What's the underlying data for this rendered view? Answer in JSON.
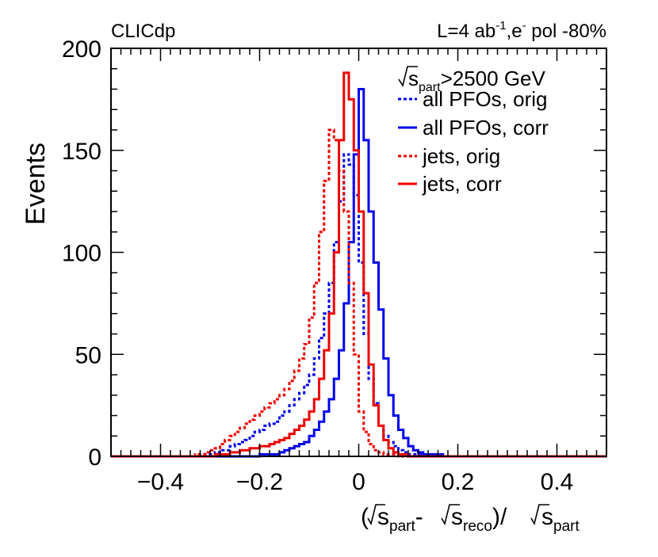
{
  "chart_data": {
    "type": "line",
    "style": "step-histogram",
    "experiment_label": "CLICdp",
    "lumi_label": {
      "main": "L=4 ab",
      "sup": "-1",
      "mid": ",e",
      "sup2": "-",
      "tail": " pol -80%"
    },
    "ylabel": "Events",
    "xlabel": {
      "open": "(",
      "s1": "s",
      "sub1": "part",
      "dash": "-",
      "s2": "s",
      "sub2": "reco",
      "slash": ")/",
      "s3": "s",
      "sub3": "part"
    },
    "legend_title": {
      "s": "s",
      "sub": "part",
      "rest": ">2500 GeV"
    },
    "xlim": [
      -0.5,
      0.5
    ],
    "ylim": [
      0,
      200
    ],
    "x_ticks": [
      -0.4,
      -0.2,
      0,
      0.2,
      0.4
    ],
    "x_tick_labels": [
      "−0.4",
      "−0.2",
      "0",
      "0.2",
      "0.4"
    ],
    "y_ticks": [
      0,
      50,
      100,
      150,
      200
    ],
    "y_tick_labels": [
      "0",
      "50",
      "100",
      "150",
      "200"
    ],
    "bin_width": 0.01,
    "colors": {
      "blue": "#0000ee",
      "red": "#ee0000"
    },
    "series": [
      {
        "name": "all PFOs, orig",
        "color": "#0000ee",
        "dashed": true,
        "bin_lows": [
          -0.5,
          -0.49,
          -0.48,
          -0.47,
          -0.46,
          -0.45,
          -0.44,
          -0.43,
          -0.42,
          -0.41,
          -0.4,
          -0.39,
          -0.38,
          -0.37,
          -0.36,
          -0.35,
          -0.34,
          -0.33,
          -0.32,
          -0.31,
          -0.3,
          -0.29,
          -0.28,
          -0.27,
          -0.26,
          -0.25,
          -0.24,
          -0.23,
          -0.22,
          -0.21,
          -0.2,
          -0.19,
          -0.18,
          -0.17,
          -0.16,
          -0.15,
          -0.14,
          -0.13,
          -0.12,
          -0.11,
          -0.1,
          -0.09,
          -0.08,
          -0.07,
          -0.06,
          -0.05,
          -0.04,
          -0.03,
          -0.02,
          -0.01,
          0,
          0.01,
          0.02,
          0.03,
          0.04,
          0.05,
          0.06,
          0.07,
          0.08,
          0.09,
          0.1,
          0.11,
          0.12,
          0.13,
          0.14,
          0.15,
          0.16,
          0.17,
          0.18,
          0.19,
          0.2,
          0.21,
          0.22,
          0.23,
          0.24,
          0.25,
          0.26,
          0.27,
          0.28,
          0.29,
          0.3,
          0.31,
          0.32,
          0.33,
          0.34,
          0.35,
          0.36,
          0.37,
          0.38,
          0.39,
          0.4,
          0.41,
          0.42,
          0.43,
          0.44,
          0.45,
          0.46,
          0.47,
          0.48,
          0.49
        ],
        "values": [
          0,
          0,
          0,
          0,
          0,
          0,
          0,
          0,
          0,
          0,
          0,
          0,
          0,
          0,
          0,
          0,
          0,
          0,
          1,
          1,
          1,
          2,
          3,
          3,
          5,
          6,
          7,
          8,
          10,
          12,
          13,
          15,
          16,
          17,
          20,
          22,
          25,
          28,
          31,
          35,
          40,
          48,
          58,
          70,
          85,
          105,
          125,
          148,
          143,
          128,
          95,
          60,
          38,
          26,
          15,
          10,
          7,
          5,
          3,
          2,
          1,
          1,
          1,
          0,
          0,
          0,
          0,
          0,
          0,
          0,
          0,
          0,
          0,
          0,
          0,
          0,
          0,
          0,
          0,
          0,
          0,
          0,
          0,
          0,
          0,
          0,
          0,
          0,
          0,
          0,
          0,
          0,
          0,
          0,
          0,
          0,
          0,
          0,
          0,
          0
        ]
      },
      {
        "name": "all PFOs, corr",
        "color": "#0000ee",
        "dashed": false,
        "bin_lows": [
          -0.5,
          -0.49,
          -0.48,
          -0.47,
          -0.46,
          -0.45,
          -0.44,
          -0.43,
          -0.42,
          -0.41,
          -0.4,
          -0.39,
          -0.38,
          -0.37,
          -0.36,
          -0.35,
          -0.34,
          -0.33,
          -0.32,
          -0.31,
          -0.3,
          -0.29,
          -0.28,
          -0.27,
          -0.26,
          -0.25,
          -0.24,
          -0.23,
          -0.22,
          -0.21,
          -0.2,
          -0.19,
          -0.18,
          -0.17,
          -0.16,
          -0.15,
          -0.14,
          -0.13,
          -0.12,
          -0.11,
          -0.1,
          -0.09,
          -0.08,
          -0.07,
          -0.06,
          -0.05,
          -0.04,
          -0.03,
          -0.02,
          -0.01,
          0,
          0.01,
          0.02,
          0.03,
          0.04,
          0.05,
          0.06,
          0.07,
          0.08,
          0.09,
          0.1,
          0.11,
          0.12,
          0.13,
          0.14,
          0.15,
          0.16,
          0.17,
          0.18,
          0.19,
          0.2,
          0.21,
          0.22,
          0.23,
          0.24,
          0.25,
          0.26,
          0.27,
          0.28,
          0.29,
          0.3,
          0.31,
          0.32,
          0.33,
          0.34,
          0.35,
          0.36,
          0.37,
          0.38,
          0.39,
          0.4,
          0.41,
          0.42,
          0.43,
          0.44,
          0.45,
          0.46,
          0.47,
          0.48,
          0.49
        ],
        "values": [
          0,
          0,
          0,
          0,
          0,
          0,
          0,
          0,
          0,
          0,
          0,
          0,
          0,
          0,
          0,
          0,
          0,
          0,
          0,
          0,
          0,
          0,
          0,
          0,
          0,
          0,
          0,
          0,
          0,
          0,
          1,
          1,
          1,
          1,
          2,
          3,
          4,
          5,
          6,
          7,
          10,
          13,
          17,
          22,
          28,
          38,
          52,
          75,
          105,
          148,
          180,
          155,
          120,
          95,
          72,
          48,
          30,
          20,
          13,
          9,
          5,
          3,
          2,
          1,
          1,
          1,
          1,
          0,
          0,
          0,
          0,
          0,
          0,
          0,
          0,
          0,
          0,
          0,
          0,
          0,
          0,
          0,
          0,
          0,
          0,
          0,
          0,
          0,
          0,
          0,
          0,
          0,
          0,
          0,
          0,
          0,
          0,
          0,
          0,
          0
        ]
      },
      {
        "name": "jets, orig",
        "color": "#ee0000",
        "dashed": true,
        "bin_lows": [
          -0.5,
          -0.49,
          -0.48,
          -0.47,
          -0.46,
          -0.45,
          -0.44,
          -0.43,
          -0.42,
          -0.41,
          -0.4,
          -0.39,
          -0.38,
          -0.37,
          -0.36,
          -0.35,
          -0.34,
          -0.33,
          -0.32,
          -0.31,
          -0.3,
          -0.29,
          -0.28,
          -0.27,
          -0.26,
          -0.25,
          -0.24,
          -0.23,
          -0.22,
          -0.21,
          -0.2,
          -0.19,
          -0.18,
          -0.17,
          -0.16,
          -0.15,
          -0.14,
          -0.13,
          -0.12,
          -0.11,
          -0.1,
          -0.09,
          -0.08,
          -0.07,
          -0.06,
          -0.05,
          -0.04,
          -0.03,
          -0.02,
          -0.01,
          0,
          0.01,
          0.02,
          0.03,
          0.04,
          0.05,
          0.06,
          0.07,
          0.08,
          0.09,
          0.1,
          0.11,
          0.12,
          0.13,
          0.14,
          0.15,
          0.16,
          0.17,
          0.18,
          0.19,
          0.2,
          0.21,
          0.22,
          0.23,
          0.24,
          0.25,
          0.26,
          0.27,
          0.28,
          0.29,
          0.3,
          0.31,
          0.32,
          0.33,
          0.34,
          0.35,
          0.36,
          0.37,
          0.38,
          0.39,
          0.4,
          0.41,
          0.42,
          0.43,
          0.44,
          0.45,
          0.46,
          0.47,
          0.48,
          0.49
        ],
        "values": [
          0,
          0,
          0,
          0,
          0,
          0,
          0,
          0,
          0,
          0,
          0,
          0,
          0,
          0,
          0,
          0,
          0,
          1,
          1,
          2,
          3,
          4,
          6,
          8,
          10,
          12,
          14,
          16,
          18,
          20,
          22,
          24,
          26,
          28,
          30,
          33,
          37,
          42,
          48,
          55,
          68,
          85,
          110,
          135,
          160,
          155,
          140,
          120,
          85,
          50,
          22,
          12,
          6,
          3,
          2,
          1,
          1,
          1,
          0,
          0,
          0,
          0,
          0,
          0,
          0,
          0,
          0,
          0,
          0,
          0,
          0,
          0,
          0,
          0,
          0,
          0,
          0,
          0,
          0,
          0,
          0,
          0,
          0,
          0,
          0,
          0,
          0,
          0,
          0,
          0,
          0,
          0,
          0,
          0,
          0,
          0,
          0,
          0,
          0,
          0
        ]
      },
      {
        "name": "jets, corr",
        "color": "#ee0000",
        "dashed": false,
        "bin_lows": [
          -0.5,
          -0.49,
          -0.48,
          -0.47,
          -0.46,
          -0.45,
          -0.44,
          -0.43,
          -0.42,
          -0.41,
          -0.4,
          -0.39,
          -0.38,
          -0.37,
          -0.36,
          -0.35,
          -0.34,
          -0.33,
          -0.32,
          -0.31,
          -0.3,
          -0.29,
          -0.28,
          -0.27,
          -0.26,
          -0.25,
          -0.24,
          -0.23,
          -0.22,
          -0.21,
          -0.2,
          -0.19,
          -0.18,
          -0.17,
          -0.16,
          -0.15,
          -0.14,
          -0.13,
          -0.12,
          -0.11,
          -0.1,
          -0.09,
          -0.08,
          -0.07,
          -0.06,
          -0.05,
          -0.04,
          -0.03,
          -0.02,
          -0.01,
          0,
          0.01,
          0.02,
          0.03,
          0.04,
          0.05,
          0.06,
          0.07,
          0.08,
          0.09,
          0.1,
          0.11,
          0.12,
          0.13,
          0.14,
          0.15,
          0.16,
          0.17,
          0.18,
          0.19,
          0.2,
          0.21,
          0.22,
          0.23,
          0.24,
          0.25,
          0.26,
          0.27,
          0.28,
          0.29,
          0.3,
          0.31,
          0.32,
          0.33,
          0.34,
          0.35,
          0.36,
          0.37,
          0.38,
          0.39,
          0.4,
          0.41,
          0.42,
          0.43,
          0.44,
          0.45,
          0.46,
          0.47,
          0.48,
          0.49
        ],
        "values": [
          0,
          0,
          0,
          0,
          0,
          0,
          0,
          0,
          0,
          0,
          0,
          0,
          0,
          0,
          0,
          0,
          0,
          0,
          0,
          0,
          0,
          1,
          1,
          1,
          2,
          2,
          3,
          3,
          4,
          4,
          5,
          5,
          6,
          7,
          8,
          9,
          11,
          13,
          15,
          18,
          22,
          28,
          38,
          52,
          70,
          100,
          155,
          188,
          175,
          150,
          120,
          80,
          45,
          25,
          15,
          8,
          4,
          2,
          1,
          1,
          0,
          0,
          0,
          0,
          0,
          0,
          0,
          0,
          0,
          0,
          0,
          0,
          0,
          0,
          0,
          0,
          0,
          0,
          0,
          0,
          0,
          0,
          0,
          0,
          0,
          0,
          0,
          0,
          0,
          0,
          0,
          0,
          0,
          0,
          0,
          0,
          0,
          0,
          0,
          0
        ]
      }
    ]
  }
}
